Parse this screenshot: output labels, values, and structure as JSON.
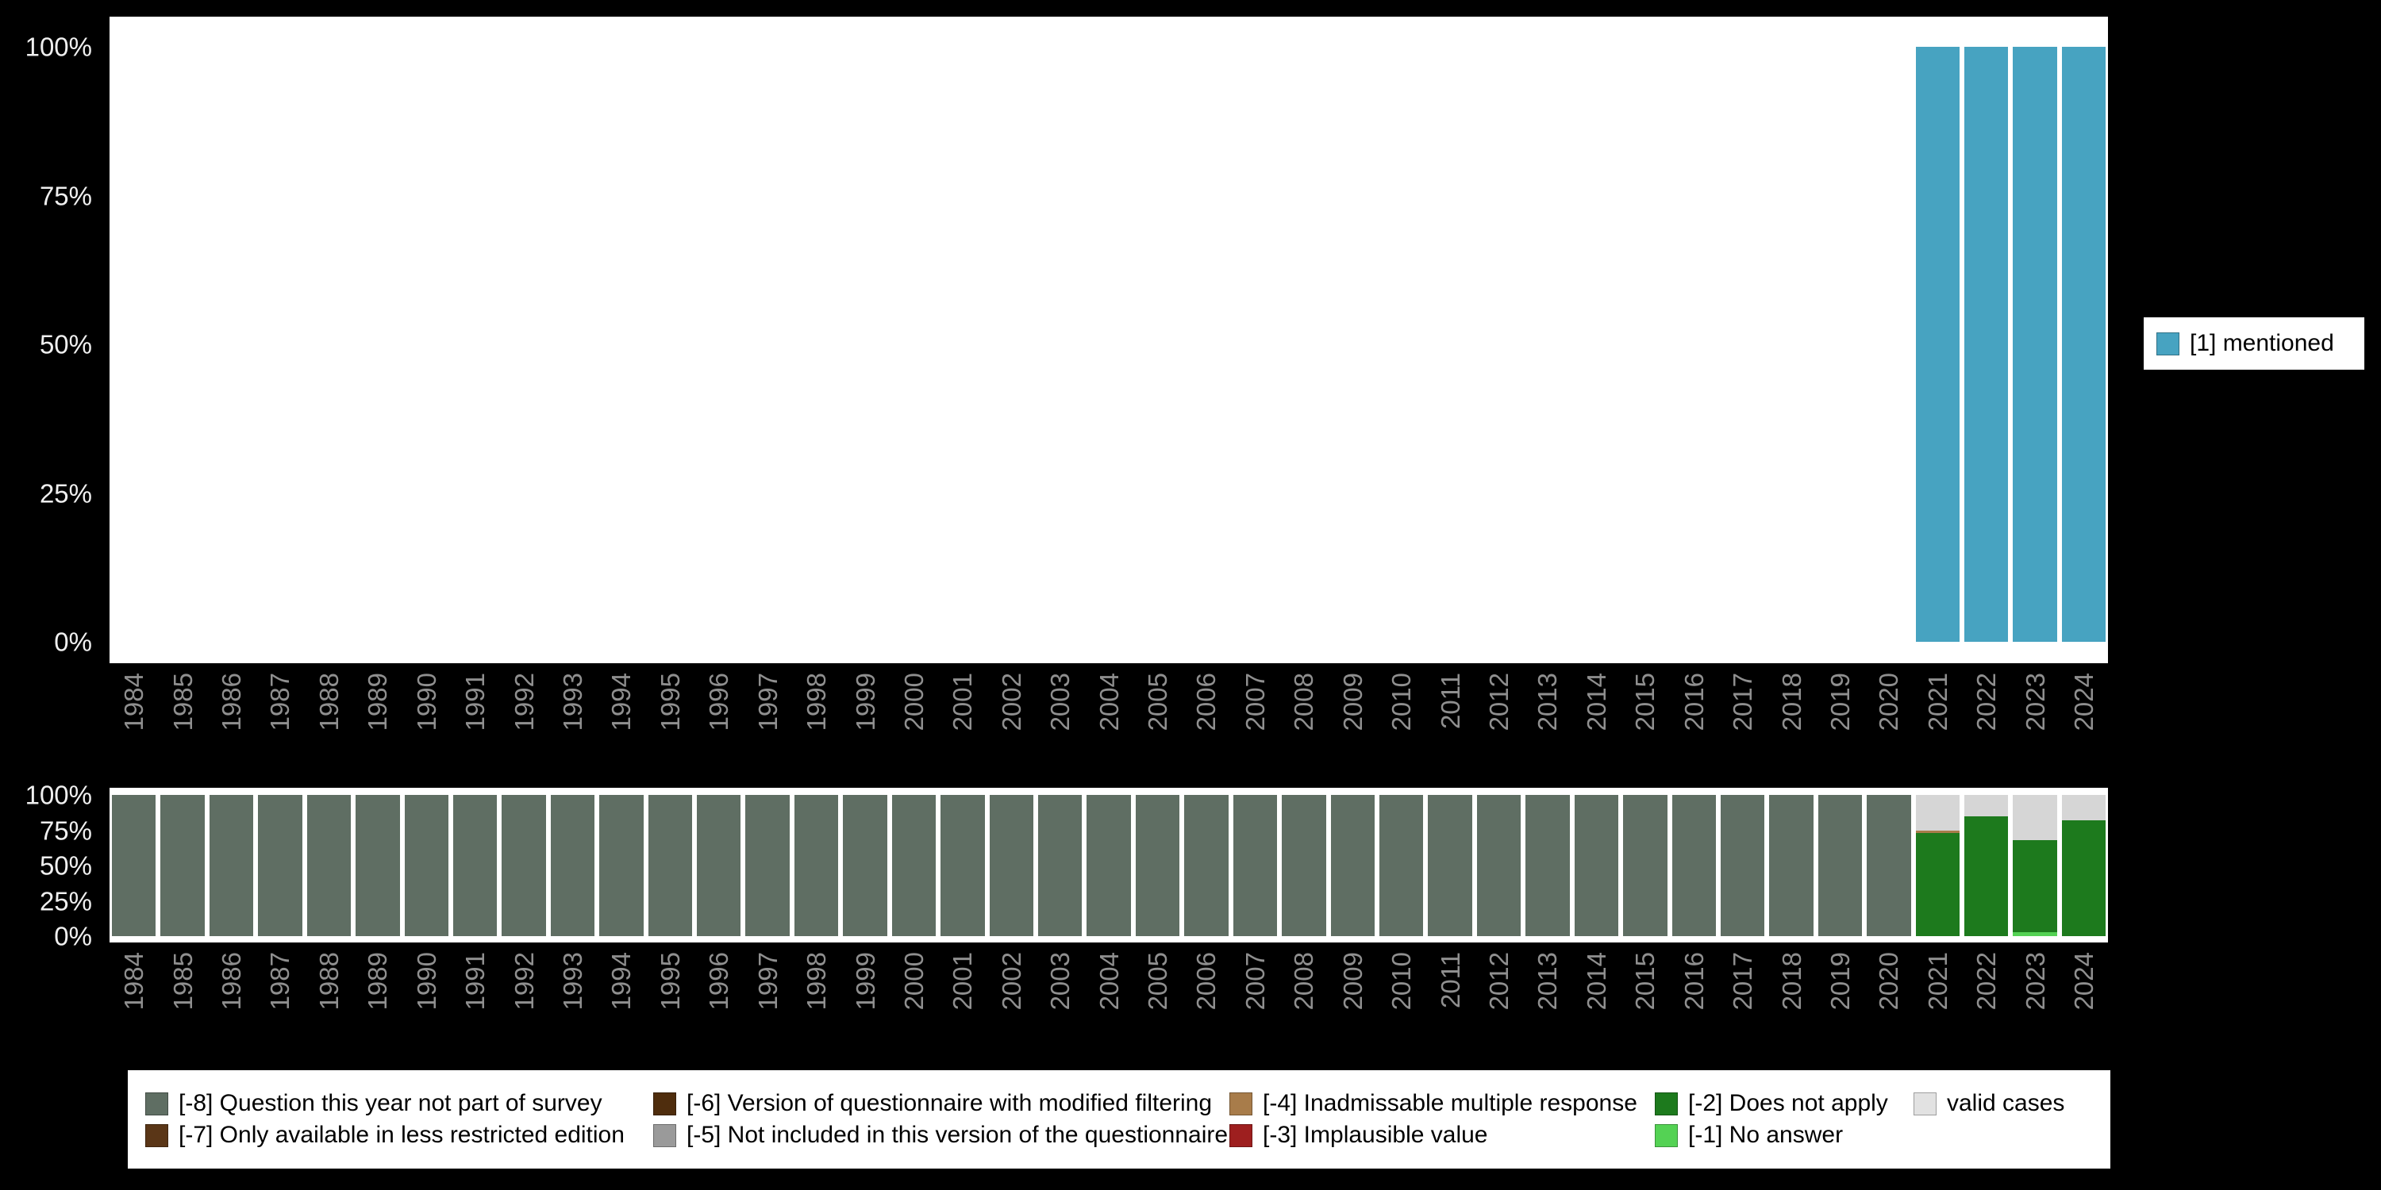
{
  "page": {
    "background": "#000000",
    "panel_background": "#ffffff"
  },
  "axes": {
    "years": [
      "1984",
      "1985",
      "1986",
      "1987",
      "1988",
      "1989",
      "1990",
      "1991",
      "1992",
      "1993",
      "1994",
      "1995",
      "1996",
      "1997",
      "1998",
      "1999",
      "2000",
      "2001",
      "2002",
      "2003",
      "2004",
      "2005",
      "2006",
      "2007",
      "2008",
      "2009",
      "2010",
      "2011",
      "2012",
      "2013",
      "2014",
      "2015",
      "2016",
      "2017",
      "2018",
      "2019",
      "2020",
      "2021",
      "2022",
      "2023",
      "2024"
    ],
    "ytick_labels": [
      "100%",
      "75%",
      "50%",
      "25%",
      "0%"
    ],
    "ytick_values": [
      100,
      75,
      50,
      25,
      0
    ]
  },
  "legend_right": {
    "label": "[1] mentioned",
    "color": "#47a3c1"
  },
  "legend_bottom": {
    "items": [
      {
        "label": "[-8] Question this year not part of survey",
        "color": "#5f6e63"
      },
      {
        "label": "[-6] Version of questionnaire with modified filtering",
        "color": "#4f2d0d"
      },
      {
        "label": "[-4] Inadmissable multiple response",
        "color": "#a87c4a"
      },
      {
        "label": "[-2] Does not apply",
        "color": "#1d7a1d"
      },
      {
        "label": "valid cases",
        "color": "#e2e2e2"
      },
      {
        "label": "[-7] Only available in less restricted edition",
        "color": "#5a3617"
      },
      {
        "label": "[-5] Not included in this version of the questionnaire",
        "color": "#9a9a9a"
      },
      {
        "label": "[-3] Implausible value",
        "color": "#9e1f1f"
      },
      {
        "label": "[-1] No answer",
        "color": "#54d254"
      }
    ]
  },
  "chart_data": [
    {
      "type": "bar",
      "title": "",
      "xlabel": "",
      "ylabel": "",
      "ylim": [
        0,
        100
      ],
      "grid": false,
      "legend_position": "right",
      "categories": [
        "1984",
        "1985",
        "1986",
        "1987",
        "1988",
        "1989",
        "1990",
        "1991",
        "1992",
        "1993",
        "1994",
        "1995",
        "1996",
        "1997",
        "1998",
        "1999",
        "2000",
        "2001",
        "2002",
        "2003",
        "2004",
        "2005",
        "2006",
        "2007",
        "2008",
        "2009",
        "2010",
        "2011",
        "2012",
        "2013",
        "2014",
        "2015",
        "2016",
        "2017",
        "2018",
        "2019",
        "2020",
        "2021",
        "2022",
        "2023",
        "2024"
      ],
      "series": [
        {
          "name": "[1] mentioned",
          "color": "#47a3c1",
          "values": [
            0,
            0,
            0,
            0,
            0,
            0,
            0,
            0,
            0,
            0,
            0,
            0,
            0,
            0,
            0,
            0,
            0,
            0,
            0,
            0,
            0,
            0,
            0,
            0,
            0,
            0,
            0,
            0,
            0,
            0,
            0,
            0,
            0,
            0,
            0,
            0,
            0,
            100,
            100,
            100,
            100
          ]
        }
      ]
    },
    {
      "type": "bar",
      "subtype": "stacked",
      "title": "",
      "xlabel": "",
      "ylabel": "",
      "ylim": [
        0,
        100
      ],
      "grid": false,
      "legend_position": "bottom",
      "categories": [
        "1984",
        "1985",
        "1986",
        "1987",
        "1988",
        "1989",
        "1990",
        "1991",
        "1992",
        "1993",
        "1994",
        "1995",
        "1996",
        "1997",
        "1998",
        "1999",
        "2000",
        "2001",
        "2002",
        "2003",
        "2004",
        "2005",
        "2006",
        "2007",
        "2008",
        "2009",
        "2010",
        "2011",
        "2012",
        "2013",
        "2014",
        "2015",
        "2016",
        "2017",
        "2018",
        "2019",
        "2020",
        "2021",
        "2022",
        "2023",
        "2024"
      ],
      "series": [
        {
          "name": "[-1] No answer",
          "color": "#54d254",
          "values": [
            0,
            0,
            0,
            0,
            0,
            0,
            0,
            0,
            0,
            0,
            0,
            0,
            0,
            0,
            0,
            0,
            0,
            0,
            0,
            0,
            0,
            0,
            0,
            0,
            0,
            0,
            0,
            0,
            0,
            0,
            0,
            0,
            0,
            0,
            0,
            0,
            0,
            0,
            0,
            3,
            0
          ]
        },
        {
          "name": "[-2] Does not apply",
          "color": "#1d7a1d",
          "values": [
            0,
            0,
            0,
            0,
            0,
            0,
            0,
            0,
            0,
            0,
            0,
            0,
            0,
            0,
            0,
            0,
            0,
            0,
            0,
            0,
            0,
            0,
            0,
            0,
            0,
            0,
            0,
            0,
            0,
            0,
            0,
            0,
            0,
            0,
            0,
            0,
            0,
            73,
            85,
            65,
            82
          ]
        },
        {
          "name": "[-4] Inadmissable multiple response",
          "color": "#a87c4a",
          "values": [
            0,
            0,
            0,
            0,
            0,
            0,
            0,
            0,
            0,
            0,
            0,
            0,
            0,
            0,
            0,
            0,
            0,
            0,
            0,
            0,
            0,
            0,
            0,
            0,
            0,
            0,
            0,
            0,
            0,
            0,
            0,
            0,
            0,
            0,
            0,
            0,
            0,
            2,
            0,
            0,
            0
          ]
        },
        {
          "name": "[-8] Question this year not part of survey",
          "color": "#5f6e63",
          "values": [
            100,
            100,
            100,
            100,
            100,
            100,
            100,
            100,
            100,
            100,
            100,
            100,
            100,
            100,
            100,
            100,
            100,
            100,
            100,
            100,
            100,
            100,
            100,
            100,
            100,
            100,
            100,
            100,
            100,
            100,
            100,
            100,
            100,
            100,
            100,
            100,
            100,
            0,
            0,
            0,
            0
          ]
        },
        {
          "name": "valid cases",
          "color": "#d6d6d6",
          "values": [
            0,
            0,
            0,
            0,
            0,
            0,
            0,
            0,
            0,
            0,
            0,
            0,
            0,
            0,
            0,
            0,
            0,
            0,
            0,
            0,
            0,
            0,
            0,
            0,
            0,
            0,
            0,
            0,
            0,
            0,
            0,
            0,
            0,
            0,
            0,
            0,
            0,
            25,
            15,
            32,
            18
          ]
        }
      ]
    }
  ]
}
